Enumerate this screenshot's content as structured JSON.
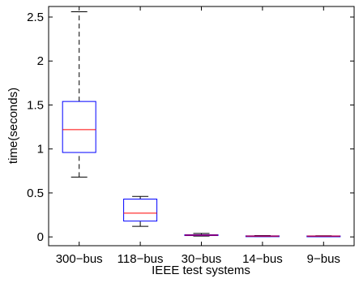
{
  "chart_data": {
    "type": "box",
    "title": "",
    "xlabel": "IEEE test systems",
    "ylabel": "time(seconds)",
    "ylim": [
      -0.1,
      2.62
    ],
    "yticks": [
      0,
      0.5,
      1,
      1.5,
      2,
      2.5
    ],
    "ytick_labels": [
      "0",
      "0.5",
      "1",
      "1.5",
      "2",
      "2.5"
    ],
    "grid": false,
    "categories": [
      "300−bus",
      "118−bus",
      "30−bus",
      "14−bus",
      "9−bus"
    ],
    "boxes": [
      {
        "whisker_low": 0.68,
        "q1": 0.96,
        "median": 1.22,
        "q3": 1.54,
        "whisker_high": 2.56
      },
      {
        "whisker_low": 0.12,
        "q1": 0.18,
        "median": 0.27,
        "q3": 0.43,
        "whisker_high": 0.46
      },
      {
        "whisker_low": 0.01,
        "q1": 0.015,
        "median": 0.02,
        "q3": 0.025,
        "whisker_high": 0.04
      },
      {
        "whisker_low": 0.005,
        "q1": 0.008,
        "median": 0.01,
        "q3": 0.012,
        "whisker_high": 0.015
      },
      {
        "whisker_low": 0.005,
        "q1": 0.007,
        "median": 0.009,
        "q3": 0.011,
        "whisker_high": 0.013
      }
    ],
    "colors": {
      "box": "#0000ff",
      "median": "#ff0000",
      "whisker": "#000000",
      "axis": "#000000"
    }
  }
}
